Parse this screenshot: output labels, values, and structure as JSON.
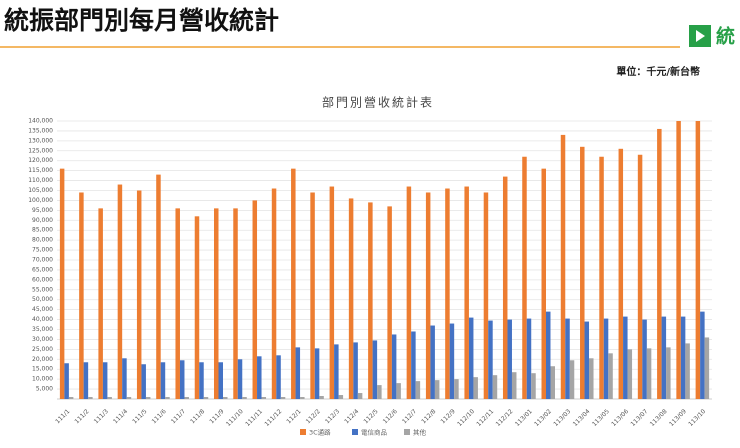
{
  "header": {
    "title": "統振部門別每月營收統計",
    "logo_text": "統",
    "unit": "單位：千元/新台幣"
  },
  "chart_data": {
    "type": "bar",
    "title": "部門別營收統計表",
    "categories": [
      "111/1",
      "111/2",
      "111/3",
      "111/4",
      "111/5",
      "111/6",
      "111/7",
      "111/8",
      "111/9",
      "111/10",
      "111/11",
      "111/12",
      "112/1",
      "112/2",
      "112/3",
      "112/4",
      "112/5",
      "112/6",
      "112/7",
      "112/8",
      "112/9",
      "112/10",
      "112/11",
      "112/12",
      "113/01",
      "113/02",
      "113/03",
      "113/04",
      "113/05",
      "113/06",
      "113/07",
      "113/08",
      "113/09",
      "113/10"
    ],
    "series": [
      {
        "name": "3C通路",
        "color": "#ed7d31",
        "values": [
          116000,
          104000,
          96000,
          108000,
          105000,
          113000,
          96000,
          92000,
          96000,
          96000,
          100000,
          106000,
          116000,
          104000,
          107000,
          101000,
          99000,
          97000,
          107000,
          104000,
          106000,
          107000,
          104000,
          112000,
          122000,
          116000,
          133000,
          127000,
          122000,
          126000,
          123000,
          136000,
          140000,
          140000
        ]
      },
      {
        "name": "電信商品",
        "color": "#4472c4",
        "values": [
          18000,
          18500,
          18500,
          20500,
          17500,
          18500,
          19500,
          18500,
          18500,
          20000,
          21500,
          22000,
          26000,
          25500,
          27500,
          28500,
          29500,
          32500,
          34000,
          37000,
          38000,
          41000,
          39500,
          40000,
          40500,
          44000,
          40500,
          39000,
          40500,
          41500,
          40000,
          41500,
          41500,
          44000
        ]
      },
      {
        "name": "其他",
        "color": "#a5a5a5",
        "values": [
          1000,
          1000,
          1000,
          1000,
          1000,
          1000,
          1000,
          1000,
          1000,
          1000,
          1000,
          1000,
          1000,
          1500,
          2000,
          3000,
          7000,
          8000,
          9000,
          9500,
          10000,
          11000,
          12000,
          13500,
          13000,
          16500,
          19500,
          20500,
          23000,
          25000,
          25500,
          26000,
          28000,
          31000
        ]
      }
    ],
    "ylim": [
      0,
      140000
    ],
    "yticks": [
      {
        "value": 5000,
        "label": "5,000"
      },
      {
        "value": 10000,
        "label": "10,000"
      },
      {
        "value": 15000,
        "label": "15,000"
      },
      {
        "value": 20000,
        "label": "20,000"
      },
      {
        "value": 25000,
        "label": "25,000"
      },
      {
        "value": 30000,
        "label": "30,000"
      },
      {
        "value": 35000,
        "label": "35,000"
      },
      {
        "value": 40000,
        "label": "40,000"
      },
      {
        "value": 45000,
        "label": "45,000"
      },
      {
        "value": 50000,
        "label": "50,000"
      },
      {
        "value": 55000,
        "label": "55,000"
      },
      {
        "value": 60000,
        "label": "60,000"
      },
      {
        "value": 65000,
        "label": "65,000"
      },
      {
        "value": 70000,
        "label": "70,000"
      },
      {
        "value": 75000,
        "label": "75,000"
      },
      {
        "value": 80000,
        "label": "80,000"
      },
      {
        "value": 85000,
        "label": "85,000"
      },
      {
        "value": 90000,
        "label": "90,000"
      },
      {
        "value": 95000,
        "label": "95,000"
      },
      {
        "value": 100000,
        "label": "100,000"
      },
      {
        "value": 105000,
        "label": "105,000"
      },
      {
        "value": 110000,
        "label": "110,000"
      },
      {
        "value": 115000,
        "label": "115,000"
      },
      {
        "value": 120000,
        "label": "120,000"
      },
      {
        "value": 125000,
        "label": "125,000"
      },
      {
        "value": 130000,
        "label": "130,000"
      },
      {
        "value": 135000,
        "label": "135,000"
      },
      {
        "value": 140000,
        "label": "140,000"
      }
    ],
    "grid": true,
    "legend": "bottom"
  }
}
